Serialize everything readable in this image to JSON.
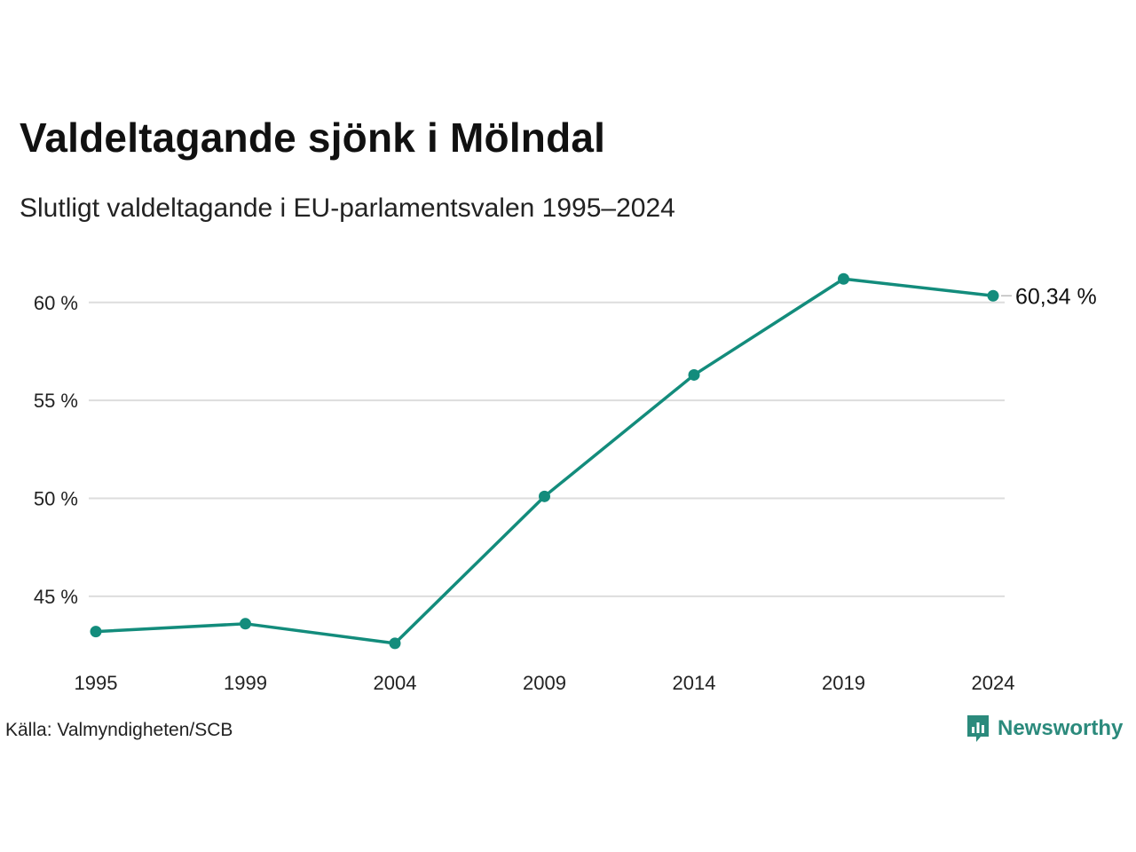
{
  "header": {
    "title": "Valdeltagande sjönk i Mölndal",
    "subtitle": "Slutligt valdeltagande i EU-parlamentsvalen 1995–2024"
  },
  "footer": {
    "source": "Källa: Valmyndigheten/SCB",
    "brand": "Newsworthy",
    "brand_icon": "newsworthy-logo-icon"
  },
  "colors": {
    "line": "#138c7c",
    "grid": "#dddddd",
    "brand": "#2b8a7c"
  },
  "chart_data": {
    "type": "line",
    "title": "Valdeltagande sjönk i Mölndal",
    "subtitle": "Slutligt valdeltagande i EU-parlamentsvalen 1995–2024",
    "x": [
      "1995",
      "1999",
      "2004",
      "2009",
      "2014",
      "2019",
      "2024"
    ],
    "series": [
      {
        "values": [
          43.2,
          43.6,
          42.6,
          50.1,
          56.3,
          61.2,
          60.34
        ]
      }
    ],
    "y_ticks": [
      45,
      50,
      55,
      60
    ],
    "y_tick_labels": [
      "45 %",
      "50 %",
      "55 %",
      "60 %"
    ],
    "ylim": [
      41.1,
      62.3
    ],
    "grid": true,
    "end_label": "60,34 %"
  }
}
